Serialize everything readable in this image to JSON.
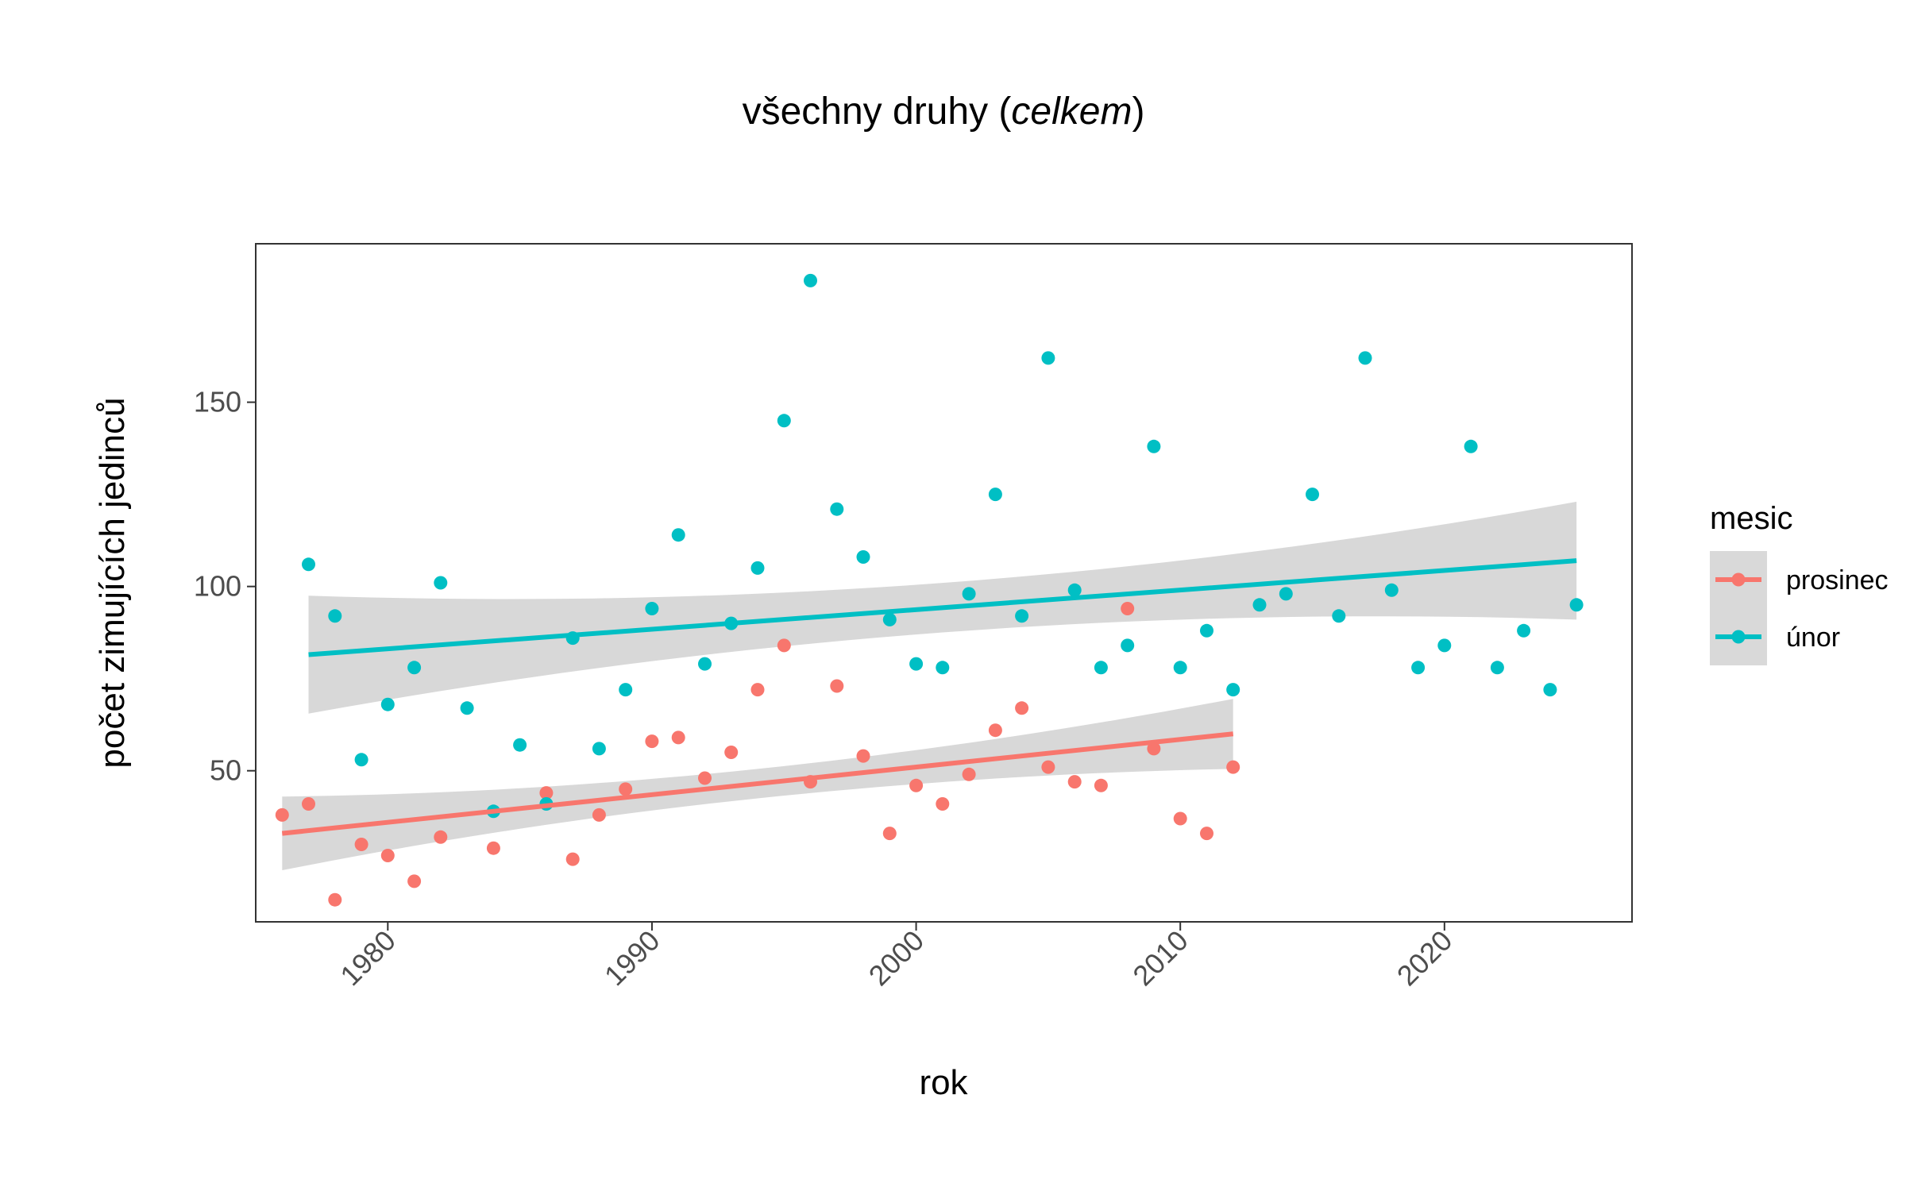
{
  "chart_data": {
    "type": "scatter",
    "title": {
      "prefix": "všechny druhy (",
      "emphasis": "celkem",
      "suffix": ")"
    },
    "xlabel": "rok",
    "ylabel": "počet zimujících jedinců",
    "xlim": [
      1975.0,
      2027.1
    ],
    "ylim": [
      9,
      193
    ],
    "xticks": [
      1980,
      1990,
      2000,
      2010,
      2020
    ],
    "yticks": [
      50,
      100,
      150
    ],
    "grid": false,
    "legend": {
      "title": "mesic",
      "placement": "right"
    },
    "series": [
      {
        "name": "prosinec",
        "color": "#F8766D",
        "points": [
          [
            1976,
            38
          ],
          [
            1977,
            41
          ],
          [
            1978,
            15
          ],
          [
            1979,
            30
          ],
          [
            1980,
            27
          ],
          [
            1981,
            20
          ],
          [
            1982,
            32
          ],
          [
            1984,
            29
          ],
          [
            1986,
            44
          ],
          [
            1987,
            26
          ],
          [
            1988,
            38
          ],
          [
            1989,
            45
          ],
          [
            1990,
            58
          ],
          [
            1991,
            59
          ],
          [
            1992,
            48
          ],
          [
            1993,
            55
          ],
          [
            1994,
            72
          ],
          [
            1995,
            84
          ],
          [
            1996,
            47
          ],
          [
            1997,
            73
          ],
          [
            1998,
            54
          ],
          [
            1999,
            33
          ],
          [
            2000,
            46
          ],
          [
            2001,
            41
          ],
          [
            2002,
            49
          ],
          [
            2003,
            61
          ],
          [
            2004,
            67
          ],
          [
            2005,
            51
          ],
          [
            2006,
            47
          ],
          [
            2007,
            46
          ],
          [
            2008,
            94
          ],
          [
            2009,
            56
          ],
          [
            2010,
            37
          ],
          [
            2011,
            33
          ],
          [
            2012,
            51
          ]
        ],
        "trend": {
          "x": [
            1976,
            2012
          ],
          "y": [
            33,
            60
          ],
          "ci_lower": [
            23,
            51
          ],
          "ci_upper": [
            43,
            70
          ]
        }
      },
      {
        "name": "únor",
        "color": "#00BFC4",
        "points": [
          [
            1977,
            106
          ],
          [
            1978,
            92
          ],
          [
            1979,
            53
          ],
          [
            1980,
            68
          ],
          [
            1981,
            78
          ],
          [
            1982,
            101
          ],
          [
            1983,
            67
          ],
          [
            1984,
            39
          ],
          [
            1985,
            57
          ],
          [
            1986,
            41
          ],
          [
            1987,
            86
          ],
          [
            1988,
            56
          ],
          [
            1989,
            72
          ],
          [
            1990,
            94
          ],
          [
            1991,
            114
          ],
          [
            1992,
            79
          ],
          [
            1993,
            90
          ],
          [
            1994,
            105
          ],
          [
            1995,
            145
          ],
          [
            1996,
            183
          ],
          [
            1997,
            121
          ],
          [
            1998,
            108
          ],
          [
            1999,
            91
          ],
          [
            2000,
            79
          ],
          [
            2001,
            78
          ],
          [
            2002,
            98
          ],
          [
            2003,
            125
          ],
          [
            2004,
            92
          ],
          [
            2005,
            162
          ],
          [
            2006,
            99
          ],
          [
            2007,
            78
          ],
          [
            2008,
            84
          ],
          [
            2009,
            138
          ],
          [
            2010,
            78
          ],
          [
            2011,
            88
          ],
          [
            2012,
            72
          ],
          [
            2013,
            95
          ],
          [
            2014,
            98
          ],
          [
            2016,
            92
          ],
          [
            2015,
            125
          ],
          [
            2017,
            162
          ],
          [
            2018,
            99
          ],
          [
            2019,
            78
          ],
          [
            2020,
            84
          ],
          [
            2021,
            138
          ],
          [
            2022,
            78
          ],
          [
            2023,
            88
          ],
          [
            2024,
            72
          ],
          [
            2025,
            95
          ]
        ],
        "trend": {
          "x": [
            1977,
            2025
          ],
          "y": [
            81.5,
            107
          ],
          "ci_lower": [
            65.5,
            91
          ],
          "ci_upper": [
            97.5,
            123
          ]
        }
      }
    ]
  }
}
